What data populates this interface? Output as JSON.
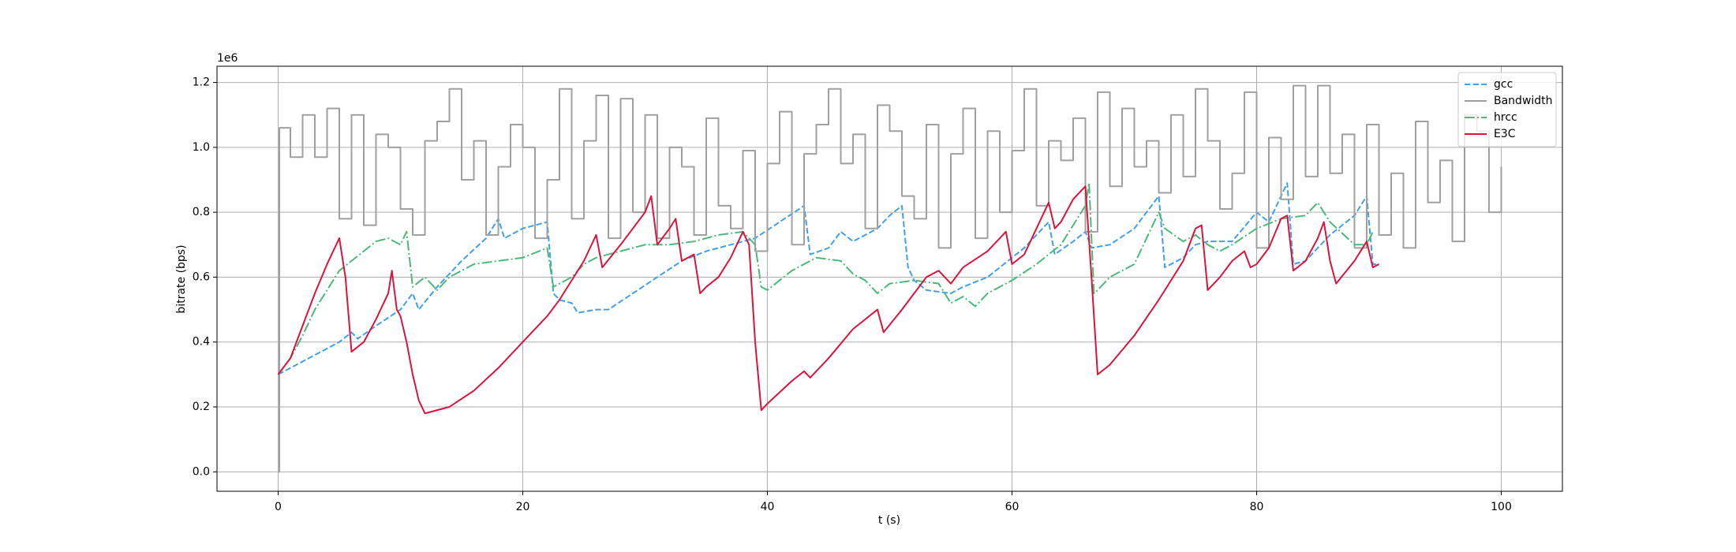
{
  "chart_data": {
    "type": "line",
    "xlabel": "t (s)",
    "ylabel": "bitrate (bps)",
    "y_offset_label": "1e6",
    "xlim": [
      -5,
      105
    ],
    "ylim": [
      -60000,
      1250000
    ],
    "xticks": [
      0,
      20,
      40,
      60,
      80,
      100
    ],
    "yticks": [
      {
        "value": 0,
        "label": "0.0"
      },
      {
        "value": 200000,
        "label": "0.2"
      },
      {
        "value": 400000,
        "label": "0.4"
      },
      {
        "value": 600000,
        "label": "0.6"
      },
      {
        "value": 800000,
        "label": "0.8"
      },
      {
        "value": 1000000,
        "label": "1.0"
      },
      {
        "value": 1200000,
        "label": "1.2"
      }
    ],
    "grid": true,
    "legend": "upper right",
    "series": [
      {
        "name": "gcc",
        "color": "#42a0ea",
        "linestyle": "dashed",
        "x": [
          0,
          5,
          6,
          6.5,
          8,
          10,
          11,
          11.5,
          13,
          15,
          17,
          18,
          18.5,
          19,
          20,
          21,
          22,
          22.5,
          23,
          24,
          24.5,
          26,
          27,
          29,
          31,
          33,
          35,
          37,
          39,
          41,
          43,
          43.5,
          45,
          46,
          47,
          49,
          50,
          51,
          51.5,
          52,
          53,
          55,
          56,
          58,
          59,
          61,
          62,
          63,
          63.5,
          65,
          66,
          66.5,
          68,
          70,
          72,
          72.5,
          74,
          75,
          76,
          78,
          80,
          81,
          82,
          82.5,
          83,
          84,
          86,
          87,
          88,
          89,
          89.5,
          90
        ],
        "values": [
          300000,
          400000,
          430000,
          410000,
          450000,
          500000,
          550000,
          500000,
          570000,
          650000,
          720000,
          780000,
          720000,
          730000,
          750000,
          760000,
          770000,
          550000,
          530000,
          520000,
          490000,
          500000,
          500000,
          550000,
          600000,
          650000,
          680000,
          700000,
          720000,
          770000,
          820000,
          670000,
          690000,
          740000,
          710000,
          750000,
          790000,
          820000,
          630000,
          590000,
          560000,
          550000,
          570000,
          600000,
          630000,
          690000,
          730000,
          770000,
          670000,
          710000,
          740000,
          690000,
          700000,
          750000,
          850000,
          630000,
          660000,
          700000,
          710000,
          710000,
          800000,
          770000,
          850000,
          890000,
          640000,
          650000,
          730000,
          760000,
          790000,
          850000,
          640000,
          640000
        ]
      },
      {
        "name": "Bandwidth",
        "color": "#a0a0a0",
        "linestyle": "solid",
        "drawstyle": "steps-post",
        "x": [
          0,
          0.1,
          1,
          2,
          3,
          4,
          5,
          6,
          7,
          8,
          9,
          10,
          11,
          12,
          13,
          14,
          15,
          16,
          17,
          18,
          19,
          20,
          21,
          22,
          23,
          24,
          25,
          26,
          27,
          28,
          29,
          30,
          31,
          32,
          33,
          34,
          35,
          36,
          37,
          38,
          39,
          40,
          41,
          42,
          43,
          44,
          45,
          46,
          47,
          48,
          49,
          50,
          51,
          52,
          53,
          54,
          55,
          56,
          57,
          58,
          59,
          60,
          61,
          62,
          63,
          64,
          65,
          66,
          67,
          68,
          69,
          70,
          71,
          72,
          73,
          74,
          75,
          76,
          77,
          78,
          79,
          80,
          81,
          82,
          83,
          84,
          85,
          86,
          87,
          88,
          89,
          90,
          91,
          92,
          93,
          94,
          95,
          96,
          97,
          98,
          99,
          100
        ],
        "values": [
          0,
          1060000,
          970000,
          1100000,
          970000,
          1120000,
          780000,
          1100000,
          760000,
          1040000,
          1000000,
          810000,
          730000,
          1020000,
          1080000,
          1180000,
          900000,
          1020000,
          730000,
          940000,
          1070000,
          1000000,
          720000,
          900000,
          1180000,
          780000,
          1020000,
          1160000,
          720000,
          1150000,
          800000,
          1100000,
          720000,
          1000000,
          940000,
          730000,
          1090000,
          820000,
          750000,
          990000,
          680000,
          950000,
          1110000,
          700000,
          980000,
          1070000,
          1180000,
          950000,
          1040000,
          750000,
          1130000,
          1050000,
          850000,
          780000,
          1070000,
          690000,
          980000,
          1120000,
          720000,
          1050000,
          800000,
          990000,
          1180000,
          820000,
          1020000,
          960000,
          1090000,
          740000,
          1170000,
          880000,
          1120000,
          940000,
          1020000,
          860000,
          1100000,
          910000,
          1180000,
          1020000,
          810000,
          920000,
          1170000,
          690000,
          1030000,
          840000,
          1190000,
          910000,
          1190000,
          920000,
          1040000,
          690000,
          1070000,
          730000,
          920000,
          690000,
          1080000,
          830000,
          960000,
          710000,
          1100000,
          1050000,
          800000,
          940000
        ]
      },
      {
        "name": "hrcc",
        "color": "#4cb87a",
        "linestyle": "dashdot",
        "x": [
          0,
          1,
          2,
          3,
          4,
          5,
          6,
          7,
          8,
          9,
          10,
          10.5,
          11,
          12,
          13,
          14,
          15,
          16,
          18,
          20,
          22,
          22.5,
          24,
          25,
          26,
          28,
          30,
          32,
          34,
          36,
          38,
          39,
          39.5,
          40,
          42,
          44,
          46,
          47,
          48,
          49,
          50,
          52,
          54,
          55,
          56,
          57,
          58,
          60,
          62,
          64,
          65,
          66,
          66.3,
          66.7,
          67,
          68,
          70,
          71,
          72,
          72.5,
          74,
          75,
          76,
          77,
          78,
          80,
          82,
          84,
          85,
          86,
          88,
          89,
          89.5
        ],
        "values": [
          300000,
          350000,
          420000,
          500000,
          560000,
          620000,
          650000,
          680000,
          710000,
          720000,
          700000,
          740000,
          570000,
          600000,
          560000,
          600000,
          620000,
          640000,
          650000,
          660000,
          690000,
          570000,
          600000,
          640000,
          660000,
          680000,
          700000,
          700000,
          710000,
          730000,
          740000,
          700000,
          570000,
          560000,
          620000,
          660000,
          650000,
          610000,
          590000,
          550000,
          580000,
          590000,
          580000,
          520000,
          540000,
          510000,
          550000,
          590000,
          640000,
          700000,
          760000,
          820000,
          890000,
          550000,
          560000,
          600000,
          640000,
          720000,
          800000,
          750000,
          710000,
          730000,
          700000,
          680000,
          700000,
          750000,
          780000,
          790000,
          830000,
          770000,
          700000,
          700000,
          740000
        ]
      },
      {
        "name": "E3C",
        "color": "#dc143c",
        "linestyle": "solid",
        "x": [
          0,
          1,
          2,
          3,
          4,
          5,
          5.5,
          6,
          7,
          8,
          9,
          9.3,
          9.7,
          10,
          10.5,
          11,
          11.5,
          12,
          14,
          16,
          18,
          20,
          22,
          23,
          25,
          26,
          26.5,
          28,
          30,
          30.5,
          31,
          32,
          32.5,
          33,
          34,
          34.5,
          35,
          36,
          37,
          38,
          38.5,
          39,
          39.5,
          40,
          42,
          43,
          43.5,
          45,
          47,
          49,
          49.5,
          51,
          52,
          53,
          54,
          55,
          56,
          58,
          59.5,
          60,
          61,
          62,
          63,
          63.5,
          64,
          65,
          66,
          66.5,
          67,
          68,
          70,
          72,
          74,
          75,
          75.5,
          76,
          77,
          78,
          79,
          79.5,
          80,
          81,
          82,
          82.5,
          83,
          84,
          85,
          85.5,
          86,
          86.5,
          88,
          89,
          89.5,
          90
        ],
        "values": [
          300000,
          350000,
          450000,
          550000,
          640000,
          720000,
          600000,
          370000,
          400000,
          470000,
          550000,
          620000,
          500000,
          480000,
          400000,
          300000,
          220000,
          180000,
          200000,
          250000,
          320000,
          400000,
          480000,
          530000,
          650000,
          730000,
          630000,
          700000,
          800000,
          850000,
          700000,
          750000,
          780000,
          650000,
          670000,
          550000,
          570000,
          600000,
          660000,
          740000,
          700000,
          400000,
          190000,
          210000,
          280000,
          310000,
          290000,
          350000,
          440000,
          500000,
          430000,
          500000,
          550000,
          600000,
          620000,
          580000,
          630000,
          680000,
          740000,
          640000,
          670000,
          750000,
          830000,
          750000,
          770000,
          840000,
          880000,
          600000,
          300000,
          330000,
          420000,
          530000,
          650000,
          750000,
          760000,
          560000,
          600000,
          650000,
          680000,
          630000,
          640000,
          690000,
          780000,
          790000,
          620000,
          650000,
          720000,
          770000,
          650000,
          580000,
          650000,
          710000,
          630000,
          640000
        ]
      }
    ]
  }
}
